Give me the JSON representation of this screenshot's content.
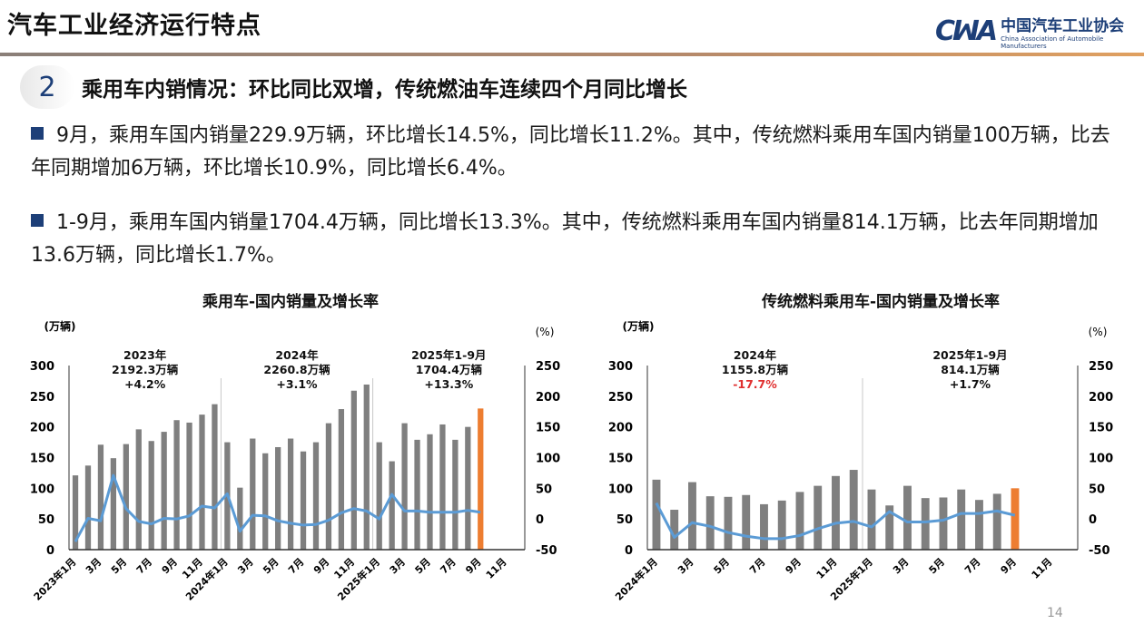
{
  "header": {
    "title": "汽车工业经济运行特点",
    "logo_cn": "中国汽车工业协会",
    "logo_en": "China Association of Automobile Manufacturers",
    "logo_mark": "CAM"
  },
  "section": {
    "number": "2",
    "heading": "乘用车内销情况：环比同比双增，传统燃油车连续四个月同比增长"
  },
  "bullets": [
    "9月，乘用车国内销量229.9万辆，环比增长14.5%，同比增长11.2%。其中，传统燃料乘用车国内销量100万辆，比去年同期增加6万辆，环比增长10.9%，同比增长6.4%。",
    "1-9月，乘用车国内销量1704.4万辆，同比增长13.3%。其中，传统燃料乘用车国内销量814.1万辆，比去年同期增加13.6万辆，同比增长1.7%。"
  ],
  "page_number": "14",
  "colors": {
    "bar": "#7f7f7f",
    "highlight": "#ed7d31",
    "line": "#5b9bd5",
    "neg": "#e03030"
  },
  "chart_data": [
    {
      "type": "bar",
      "title": "乘用车-国内销量及增长率",
      "ylabel": "(万辆)",
      "y2label": "(%)",
      "ylim": [
        0,
        300
      ],
      "y2lim": [
        -50,
        250
      ],
      "yticks": [
        "0",
        "50",
        "100",
        "150",
        "200",
        "250",
        "300"
      ],
      "y2ticks": [
        "-50",
        "0",
        "50",
        "100",
        "150",
        "200",
        "250"
      ],
      "slots": 36,
      "xticks": [
        {
          "i": 0,
          "label": "2023年1月"
        },
        {
          "i": 2,
          "label": "3月"
        },
        {
          "i": 4,
          "label": "5月"
        },
        {
          "i": 6,
          "label": "7月"
        },
        {
          "i": 8,
          "label": "9月"
        },
        {
          "i": 10,
          "label": "11月"
        },
        {
          "i": 12,
          "label": "2024年1月"
        },
        {
          "i": 14,
          "label": "3月"
        },
        {
          "i": 16,
          "label": "5月"
        },
        {
          "i": 18,
          "label": "7月"
        },
        {
          "i": 20,
          "label": "9月"
        },
        {
          "i": 22,
          "label": "11月"
        },
        {
          "i": 24,
          "label": "2025年1月"
        },
        {
          "i": 26,
          "label": "3月"
        },
        {
          "i": 28,
          "label": "5月"
        },
        {
          "i": 30,
          "label": "7月"
        },
        {
          "i": 32,
          "label": "9月"
        },
        {
          "i": 34,
          "label": "11月"
        }
      ],
      "series": [
        {
          "name": "国内销量",
          "axis": "left",
          "values": [
            121,
            137,
            171,
            149,
            172,
            196,
            177,
            192,
            211,
            207,
            220,
            237,
            175,
            101,
            181,
            157,
            167,
            181,
            160,
            175,
            206,
            229,
            259,
            269,
            175,
            144,
            206,
            179,
            188,
            204,
            179,
            200,
            230
          ]
        },
        {
          "name": "增长率",
          "axis": "right",
          "values": [
            -37,
            1,
            -3,
            71,
            17,
            -4,
            -8,
            1,
            0,
            5,
            21,
            18,
            41,
            -20,
            6,
            5,
            -3,
            -7,
            -10,
            -9,
            -2,
            10,
            17,
            13,
            0,
            40,
            13,
            13,
            11,
            11,
            11,
            14,
            11
          ]
        }
      ],
      "dividers": [
        12,
        24
      ],
      "annotations": [
        {
          "at": 5.5,
          "lines": [
            "2023年",
            "2192.3万辆",
            "+4.2%"
          ],
          "neg": false
        },
        {
          "at": 17.5,
          "lines": [
            "2024年",
            "2260.8万辆",
            "+3.1%"
          ],
          "neg": false
        },
        {
          "at": 29.5,
          "lines": [
            "2025年1-9月",
            "1704.4万辆",
            "+13.3%"
          ],
          "neg": false
        }
      ]
    },
    {
      "type": "bar",
      "title": "传统燃料乘用车-国内销量及增长率",
      "ylabel": "(万辆)",
      "y2label": "(%)",
      "ylim": [
        0,
        300
      ],
      "y2lim": [
        -50,
        250
      ],
      "yticks": [
        "0",
        "50",
        "100",
        "150",
        "200",
        "250",
        "300"
      ],
      "y2ticks": [
        "-50",
        "0",
        "50",
        "100",
        "150",
        "200",
        "250"
      ],
      "slots": 24,
      "xticks": [
        {
          "i": 0,
          "label": "2024年1月"
        },
        {
          "i": 2,
          "label": "3月"
        },
        {
          "i": 4,
          "label": "5月"
        },
        {
          "i": 6,
          "label": "7月"
        },
        {
          "i": 8,
          "label": "9月"
        },
        {
          "i": 10,
          "label": "11月"
        },
        {
          "i": 12,
          "label": "2025年1月"
        },
        {
          "i": 14,
          "label": "3月"
        },
        {
          "i": 16,
          "label": "5月"
        },
        {
          "i": 18,
          "label": "7月"
        },
        {
          "i": 20,
          "label": "9月"
        },
        {
          "i": 22,
          "label": "11月"
        }
      ],
      "series": [
        {
          "name": "国内销量",
          "axis": "left",
          "values": [
            114,
            65,
            110,
            87,
            86,
            89,
            74,
            80,
            94,
            104,
            120,
            130,
            98,
            72,
            104,
            84,
            85,
            98,
            81,
            91,
            100
          ]
        },
        {
          "name": "增长率",
          "axis": "right",
          "values": [
            26,
            -30,
            -6,
            -12,
            -22,
            -28,
            -32,
            -32,
            -27,
            -16,
            -7,
            -4,
            -13,
            12,
            -5,
            -5,
            -2,
            9,
            9,
            13,
            6
          ]
        }
      ],
      "dividers": [
        12
      ],
      "annotations": [
        {
          "at": 5.5,
          "lines": [
            "2024年",
            "1155.8万辆",
            "-17.7%"
          ],
          "neg": true
        },
        {
          "at": 17.5,
          "lines": [
            "2025年1-9月",
            "814.1万辆",
            "+1.7%"
          ],
          "neg": false
        }
      ]
    }
  ]
}
